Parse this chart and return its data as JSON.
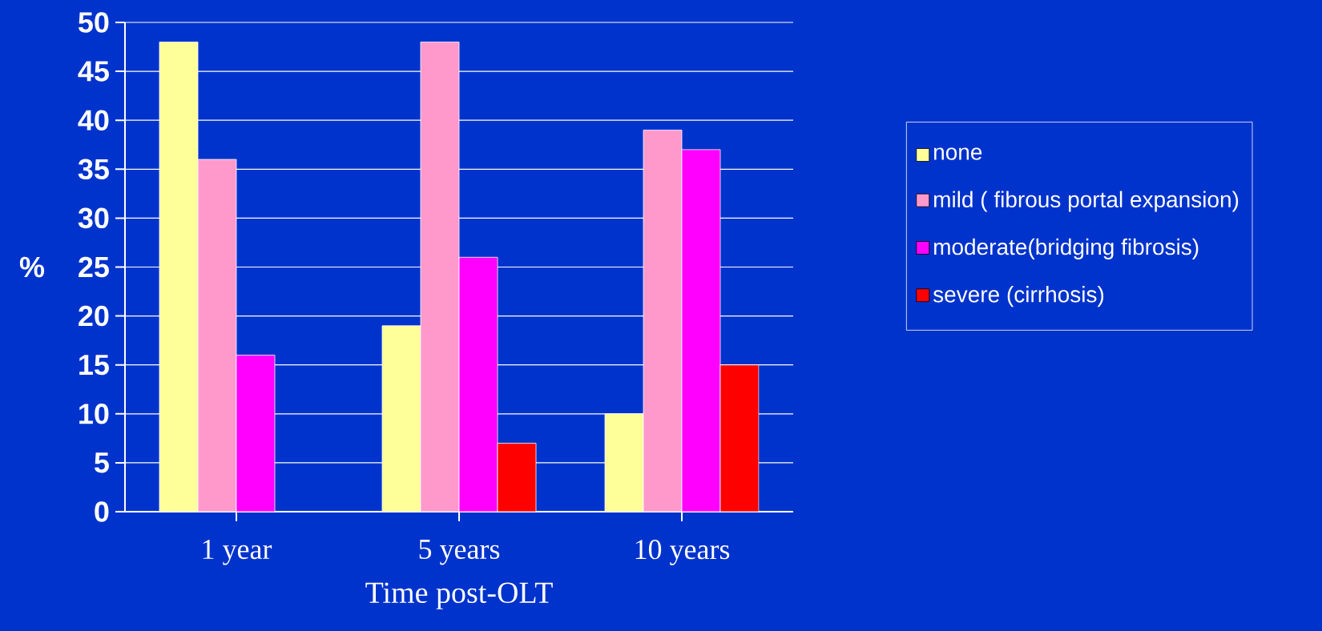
{
  "chart_data": {
    "type": "bar",
    "xlabel": "Time post-OLT",
    "ylabel": "%",
    "categories": [
      "1 year",
      "5 years",
      "10 years"
    ],
    "series": [
      {
        "name": "none",
        "color": "#ffff99",
        "values": [
          48,
          19,
          10
        ]
      },
      {
        "name": "mild ( fibrous portal expansion)",
        "color": "#ff99cc",
        "values": [
          36,
          48,
          39
        ]
      },
      {
        "name": "moderate(bridging fibrosis)",
        "color": "#ff00ff",
        "values": [
          16,
          26,
          37
        ]
      },
      {
        "name": "severe (cirrhosis)",
        "color": "#ff0000",
        "values": [
          0,
          7,
          15
        ]
      }
    ],
    "ylim": [
      0,
      50
    ],
    "yticks": [
      0,
      5,
      10,
      15,
      20,
      25,
      30,
      35,
      40,
      45,
      50
    ],
    "grid": "y",
    "legend": "right"
  }
}
